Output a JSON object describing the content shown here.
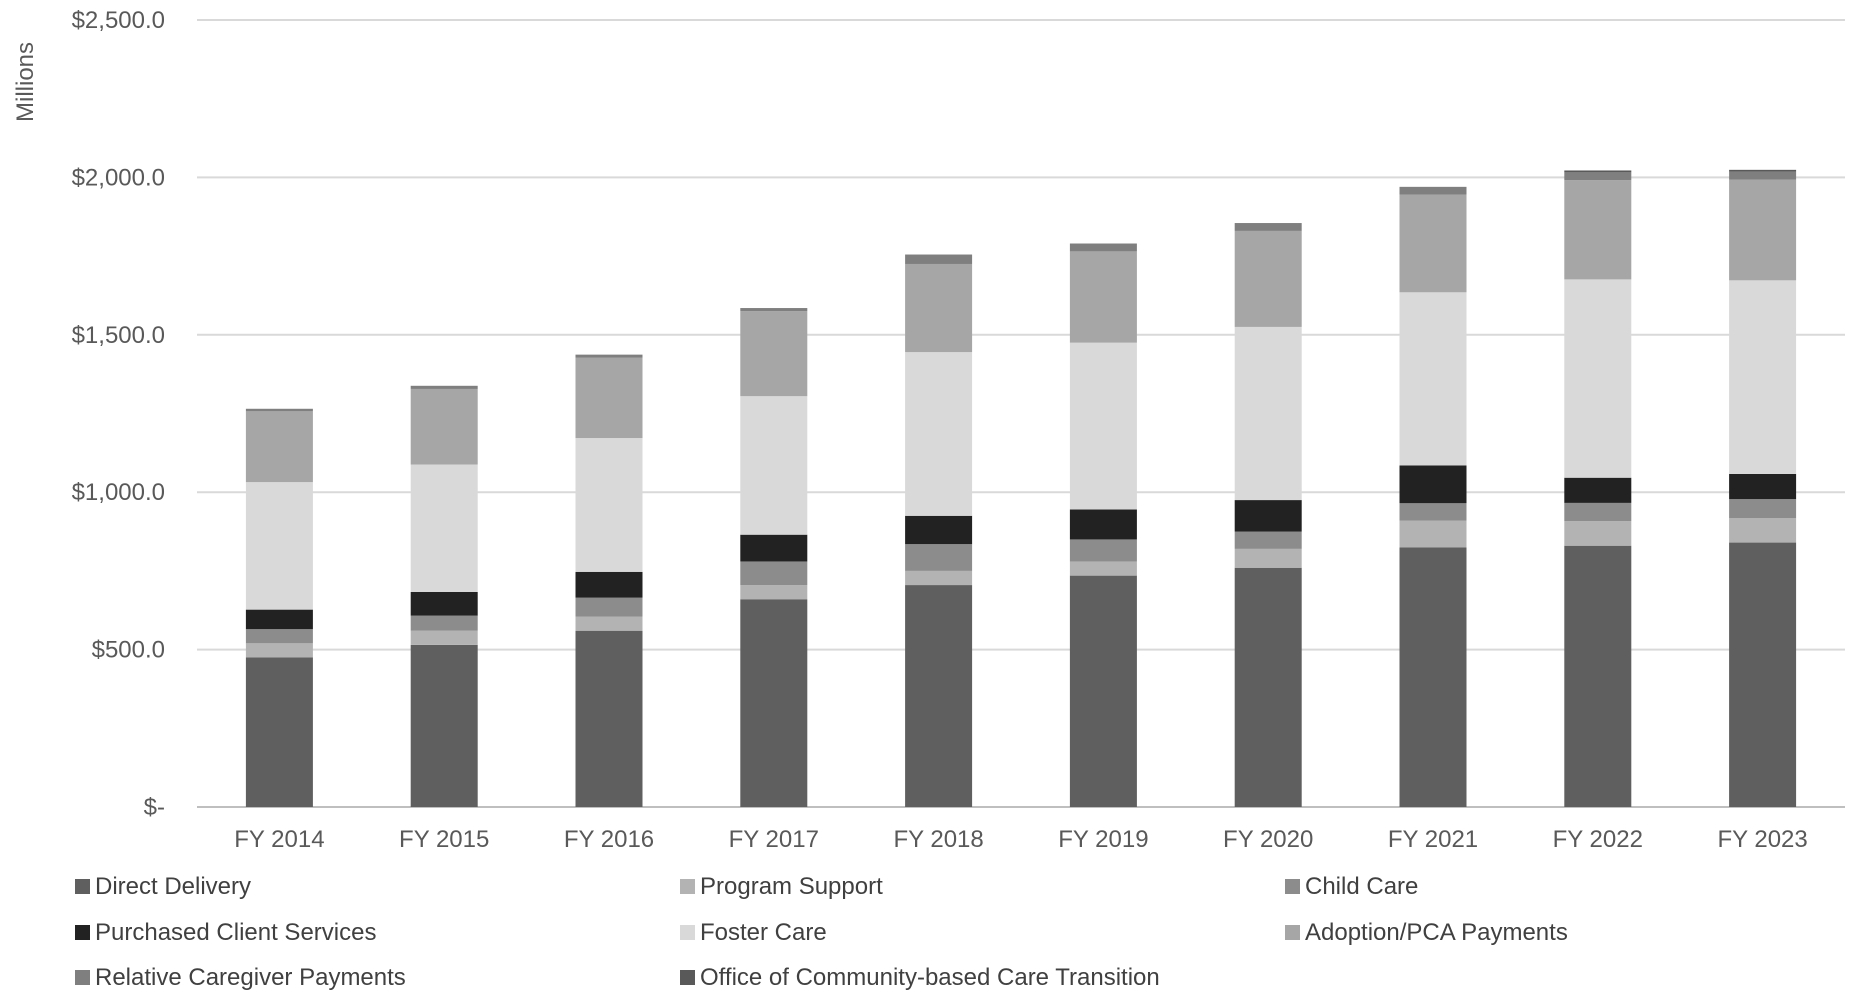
{
  "chart_data": {
    "type": "bar",
    "stacked": true,
    "title": "",
    "xlabel": "",
    "ylabel": "Millions",
    "ylim": [
      0,
      2500
    ],
    "yticks": [
      0,
      500,
      1000,
      1500,
      2000,
      2500
    ],
    "ytick_labels": [
      "$-",
      "$500.0",
      "$1,000.0",
      "$1,500.0",
      "$2,000.0",
      "$2,500.0"
    ],
    "grid": true,
    "legend_position": "bottom",
    "categories": [
      "FY 2014",
      "FY 2015",
      "FY 2016",
      "FY 2017",
      "FY 2018",
      "FY 2019",
      "FY 2020",
      "FY 2021",
      "FY 2022",
      "FY 2023"
    ],
    "series": [
      {
        "name": "Direct Delivery",
        "color": "#5f5f5f",
        "values": [
          475,
          515,
          560,
          660,
          705,
          735,
          760,
          825,
          830,
          840
        ]
      },
      {
        "name": "Program Support",
        "color": "#b3b3b3",
        "values": [
          45,
          45,
          45,
          45,
          45,
          45,
          60,
          85,
          78,
          78
        ]
      },
      {
        "name": "Child Care",
        "color": "#8c8c8c",
        "values": [
          45,
          48,
          60,
          75,
          85,
          70,
          55,
          55,
          58,
          60
        ]
      },
      {
        "name": "Purchased Client Services",
        "color": "#222222",
        "values": [
          62,
          75,
          82,
          85,
          90,
          95,
          100,
          120,
          80,
          80
        ]
      },
      {
        "name": "Foster Care",
        "color": "#d9d9d9",
        "values": [
          405,
          405,
          425,
          440,
          520,
          530,
          550,
          550,
          630,
          615
        ]
      },
      {
        "name": "Adoption/PCA Payments",
        "color": "#a6a6a6",
        "values": [
          225,
          240,
          255,
          270,
          280,
          290,
          305,
          310,
          315,
          320
        ]
      },
      {
        "name": "Relative Caregiver Payments",
        "color": "#7f7f7f",
        "values": [
          8,
          10,
          10,
          10,
          30,
          25,
          25,
          25,
          25,
          25
        ]
      },
      {
        "name": "Office of Community-based Care Transition",
        "color": "#595959",
        "values": [
          0,
          0,
          0,
          0,
          0,
          0,
          0,
          0,
          6,
          6
        ]
      }
    ]
  }
}
